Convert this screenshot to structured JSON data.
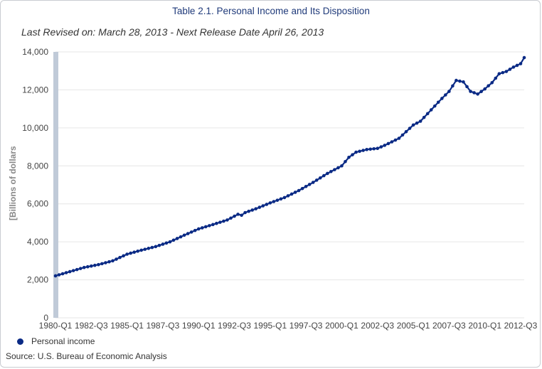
{
  "chart_data": {
    "type": "line",
    "title": "Table 2.1. Personal Income and Its Disposition",
    "subtitle": "Last Revised on: March 28, 2013 - Next Release Date April 26, 2013",
    "xlabel": "",
    "ylabel": "[Billions of dollars",
    "ylim": [
      0,
      14000
    ],
    "yticks": [
      "0",
      "2,000",
      "4,000",
      "6,000",
      "8,000",
      "10,000",
      "12,000",
      "14,000"
    ],
    "x_tick_labels": [
      "1980-Q1",
      "1982-Q3",
      "1985-Q1",
      "1987-Q3",
      "1990-Q1",
      "1992-Q3",
      "1995-Q1",
      "1997-Q3",
      "2000-Q1",
      "2002-Q3",
      "2005-Q1",
      "2007-Q3",
      "2010-Q1",
      "2012-Q3"
    ],
    "grid": true,
    "legend_position": "bottom-left",
    "series": [
      {
        "name": "Personal income",
        "color": "#0a2a85",
        "x_start": "1980-Q1",
        "x_end": "2012-Q4",
        "anchors": [
          [
            "1980-Q1",
            2210
          ],
          [
            "1981-Q1",
            2430
          ],
          [
            "1982-Q1",
            2650
          ],
          [
            "1983-Q1",
            2800
          ],
          [
            "1984-Q1",
            3000
          ],
          [
            "1985-Q1",
            3350
          ],
          [
            "1986-Q1",
            3560
          ],
          [
            "1987-Q1",
            3750
          ],
          [
            "1988-Q1",
            4000
          ],
          [
            "1989-Q1",
            4350
          ],
          [
            "1990-Q1",
            4680
          ],
          [
            "1991-Q1",
            4910
          ],
          [
            "1992-Q1",
            5150
          ],
          [
            "1992-Q4",
            5450
          ],
          [
            "1993-Q1",
            5400
          ],
          [
            "1993-Q2",
            5540
          ],
          [
            "1994-Q1",
            5740
          ],
          [
            "1995-Q1",
            6050
          ],
          [
            "1996-Q1",
            6330
          ],
          [
            "1997-Q1",
            6700
          ],
          [
            "1998-Q1",
            7130
          ],
          [
            "1999-Q1",
            7600
          ],
          [
            "2000-Q1",
            8000
          ],
          [
            "2000-Q3",
            8450
          ],
          [
            "2001-Q1",
            8720
          ],
          [
            "2001-Q4",
            8860
          ],
          [
            "2002-Q3",
            8920
          ],
          [
            "2003-Q1",
            9080
          ],
          [
            "2004-Q1",
            9450
          ],
          [
            "2005-Q1",
            10150
          ],
          [
            "2005-Q3",
            10350
          ],
          [
            "2006-Q1",
            10750
          ],
          [
            "2006-Q3",
            11150
          ],
          [
            "2007-Q1",
            11550
          ],
          [
            "2007-Q3",
            11920
          ],
          [
            "2008-Q1",
            12500
          ],
          [
            "2008-Q3",
            12420
          ],
          [
            "2009-Q1",
            11920
          ],
          [
            "2009-Q3",
            11780
          ],
          [
            "2010-Q1",
            12050
          ],
          [
            "2010-Q3",
            12380
          ],
          [
            "2011-Q1",
            12850
          ],
          [
            "2011-Q3",
            12970
          ],
          [
            "2012-Q1",
            13200
          ],
          [
            "2012-Q3",
            13380
          ],
          [
            "2012-Q4",
            13700
          ]
        ]
      }
    ]
  },
  "source": "Source: U.S. Bureau of Economic Analysis"
}
